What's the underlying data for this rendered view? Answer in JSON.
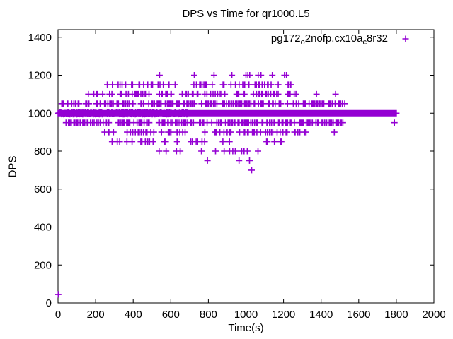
{
  "legend": {
    "parts": [
      {
        "text": "pg172",
        "sub": false
      },
      {
        "text": "o",
        "sub": true
      },
      {
        "text": "2nofp.cx10a",
        "sub": false
      },
      {
        "text": "c",
        "sub": true
      },
      {
        "text": "8r32",
        "sub": false
      }
    ],
    "marker_glyph": "+"
  },
  "chart_data": {
    "type": "scatter",
    "title": "DPS vs Time for qr1000.L5",
    "xlabel": "Time(s)",
    "ylabel": "DPS",
    "xlim": [
      0,
      2000
    ],
    "ylim": [
      0,
      1440
    ],
    "x_ticks": [
      0,
      200,
      400,
      600,
      800,
      1000,
      1200,
      1400,
      1600,
      1800,
      2000
    ],
    "y_ticks": [
      0,
      200,
      400,
      600,
      800,
      1000,
      1200,
      1400
    ],
    "grid": false,
    "legend_position": "top-right-inside",
    "series_name": "pg172_o2nofp.cx10a_c8r32",
    "marker": "plus",
    "color": "#9400D3",
    "border_color": "#000000",
    "note": "DPS values are quantized to 50-unit levels; dense solid band at DPS=1000 spans t=0..1800s",
    "bands": [
      {
        "dps": 1000,
        "t0": 0,
        "t1": 1800,
        "n": 900,
        "mode": "even"
      },
      {
        "dps": 1000,
        "t0": 5,
        "t1": 690,
        "n": 280,
        "mode": "random",
        "jitter": 6
      },
      {
        "dps": 1050,
        "t0": 20,
        "t1": 1530,
        "n": 185,
        "mode": "random"
      },
      {
        "dps": 950,
        "t0": 40,
        "t1": 1520,
        "n": 180,
        "mode": "random"
      },
      {
        "dps": 1100,
        "t0": 140,
        "t1": 1270,
        "n": 85,
        "mode": "random"
      },
      {
        "dps": 1150,
        "t0": 260,
        "t1": 1260,
        "n": 60,
        "mode": "random"
      },
      {
        "dps": 900,
        "t0": 225,
        "t1": 1320,
        "n": 65,
        "mode": "random"
      },
      {
        "dps": 850,
        "t0": 255,
        "t1": 1210,
        "n": 30,
        "mode": "random"
      }
    ],
    "points": [
      [
        1,
        45
      ],
      [
        540,
        1200
      ],
      [
        725,
        1200
      ],
      [
        830,
        1200
      ],
      [
        925,
        1200
      ],
      [
        1000,
        1200
      ],
      [
        1010,
        1200
      ],
      [
        1020,
        1200
      ],
      [
        1065,
        1200
      ],
      [
        1080,
        1200
      ],
      [
        1140,
        1200
      ],
      [
        1205,
        1200
      ],
      [
        1215,
        1200
      ],
      [
        1375,
        1100
      ],
      [
        1477,
        1100
      ],
      [
        1470,
        900
      ],
      [
        1790,
        950
      ],
      [
        538,
        800
      ],
      [
        575,
        800
      ],
      [
        630,
        800
      ],
      [
        650,
        800
      ],
      [
        763,
        800
      ],
      [
        838,
        800
      ],
      [
        884,
        800
      ],
      [
        913,
        800
      ],
      [
        930,
        800
      ],
      [
        943,
        800
      ],
      [
        977,
        800
      ],
      [
        990,
        800
      ],
      [
        1007,
        800
      ],
      [
        1064,
        800
      ],
      [
        795,
        750
      ],
      [
        963,
        750
      ],
      [
        1019,
        750
      ],
      [
        1030,
        700
      ]
    ]
  }
}
